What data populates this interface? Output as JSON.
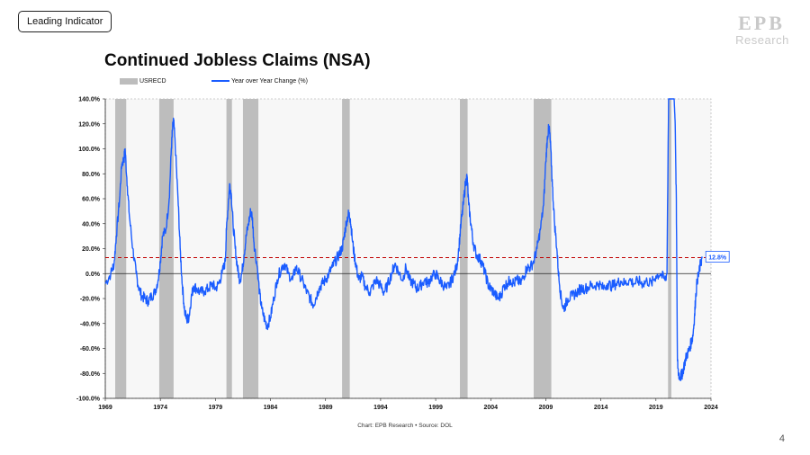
{
  "header": {
    "tag_label": "Leading Indicator",
    "logo_text": "Research",
    "logo_mark": "EPB"
  },
  "page_title": "Continued Jobless Claims (NSA)",
  "legend": {
    "recession_label": "USRECD",
    "line_label": "Year over Year Change (%)"
  },
  "footer": {
    "source": "Chart: EPB Research • Source: DOL",
    "page_number": "4"
  },
  "colors": {
    "line": "#1a5cff",
    "recession": "#bdbdbd",
    "plot_bg": "#f7f7f7",
    "threshold": "#c00000"
  },
  "chart_data": {
    "type": "line",
    "title": "Continued Jobless Claims (NSA)",
    "xlim": [
      1969,
      2024
    ],
    "ylim": [
      -100,
      140
    ],
    "x_ticks": [
      1969,
      1974,
      1979,
      1984,
      1989,
      1994,
      1999,
      2004,
      2009,
      2014,
      2019,
      2024
    ],
    "y_ticks": [
      {
        "v": 140,
        "label": "140.0%"
      },
      {
        "v": 120,
        "label": "120.0%"
      },
      {
        "v": 100,
        "label": "100.0%"
      },
      {
        "v": 80,
        "label": "80.0%"
      },
      {
        "v": 60,
        "label": "60.0%"
      },
      {
        "v": 40,
        "label": "40.0%"
      },
      {
        "v": 20,
        "label": "20.0%"
      },
      {
        "v": 0,
        "label": "0.0%"
      },
      {
        "v": -20,
        "label": "-20.0%"
      },
      {
        "v": -40,
        "label": "-40.0%"
      },
      {
        "v": -60,
        "label": "-60.0%"
      },
      {
        "v": -80,
        "label": "-80.0%"
      },
      {
        "v": -100,
        "label": "-100.0%"
      }
    ],
    "reference_line": {
      "value": 12.8,
      "label": "12.8%"
    },
    "recessions": [
      [
        1969.9,
        1970.9
      ],
      [
        1973.9,
        1975.2
      ],
      [
        1980.0,
        1980.5
      ],
      [
        1981.5,
        1982.9
      ],
      [
        1990.5,
        1991.2
      ],
      [
        2001.2,
        2001.9
      ],
      [
        2007.9,
        2009.5
      ],
      [
        2020.1,
        2020.4
      ]
    ],
    "series": [
      {
        "name": "Year over Year Change (%)",
        "points": [
          [
            1969.0,
            -8
          ],
          [
            1969.5,
            0
          ],
          [
            1969.8,
            8
          ],
          [
            1970.0,
            30
          ],
          [
            1970.3,
            60
          ],
          [
            1970.5,
            88
          ],
          [
            1970.7,
            92
          ],
          [
            1970.8,
            100
          ],
          [
            1971.0,
            70
          ],
          [
            1971.2,
            45
          ],
          [
            1971.5,
            20
          ],
          [
            1971.8,
            0
          ],
          [
            1972.0,
            -10
          ],
          [
            1972.3,
            -18
          ],
          [
            1972.6,
            -20
          ],
          [
            1972.9,
            -22
          ],
          [
            1973.2,
            -18
          ],
          [
            1973.5,
            -15
          ],
          [
            1973.8,
            -5
          ],
          [
            1974.0,
            10
          ],
          [
            1974.2,
            30
          ],
          [
            1974.5,
            35
          ],
          [
            1974.8,
            60
          ],
          [
            1975.0,
            100
          ],
          [
            1975.1,
            115
          ],
          [
            1975.2,
            123
          ],
          [
            1975.4,
            95
          ],
          [
            1975.6,
            60
          ],
          [
            1975.8,
            20
          ],
          [
            1976.0,
            -10
          ],
          [
            1976.2,
            -30
          ],
          [
            1976.4,
            -37
          ],
          [
            1976.6,
            -35
          ],
          [
            1976.8,
            -20
          ],
          [
            1977.0,
            -10
          ],
          [
            1977.3,
            -12
          ],
          [
            1977.6,
            -15
          ],
          [
            1978.0,
            -14
          ],
          [
            1978.4,
            -12
          ],
          [
            1978.7,
            -8
          ],
          [
            1979.0,
            -12
          ],
          [
            1979.3,
            -8
          ],
          [
            1979.6,
            0
          ],
          [
            1979.9,
            10
          ],
          [
            1980.0,
            35
          ],
          [
            1980.2,
            60
          ],
          [
            1980.3,
            72
          ],
          [
            1980.45,
            62
          ],
          [
            1980.6,
            40
          ],
          [
            1980.8,
            20
          ],
          [
            1981.0,
            5
          ],
          [
            1981.2,
            -5
          ],
          [
            1981.4,
            0
          ],
          [
            1981.6,
            15
          ],
          [
            1981.8,
            30
          ],
          [
            1982.0,
            40
          ],
          [
            1982.2,
            50
          ],
          [
            1982.35,
            45
          ],
          [
            1982.5,
            25
          ],
          [
            1982.8,
            5
          ],
          [
            1983.0,
            -15
          ],
          [
            1983.2,
            -28
          ],
          [
            1983.5,
            -38
          ],
          [
            1983.7,
            -42
          ],
          [
            1984.0,
            -35
          ],
          [
            1984.3,
            -20
          ],
          [
            1984.6,
            -5
          ],
          [
            1985.0,
            5
          ],
          [
            1985.3,
            8
          ],
          [
            1985.6,
            0
          ],
          [
            1986.0,
            -5
          ],
          [
            1986.3,
            5
          ],
          [
            1986.6,
            0
          ],
          [
            1987.0,
            -8
          ],
          [
            1987.3,
            -15
          ],
          [
            1987.6,
            -20
          ],
          [
            1987.9,
            -25
          ],
          [
            1988.1,
            -20
          ],
          [
            1988.4,
            -12
          ],
          [
            1988.7,
            -8
          ],
          [
            1989.0,
            -5
          ],
          [
            1989.3,
            0
          ],
          [
            1989.6,
            5
          ],
          [
            1989.9,
            10
          ],
          [
            1990.2,
            15
          ],
          [
            1990.5,
            20
          ],
          [
            1990.7,
            30
          ],
          [
            1990.9,
            42
          ],
          [
            1991.1,
            48
          ],
          [
            1991.25,
            44
          ],
          [
            1991.4,
            30
          ],
          [
            1991.6,
            15
          ],
          [
            1991.8,
            5
          ],
          [
            1992.0,
            -5
          ],
          [
            1992.3,
            -2
          ],
          [
            1992.6,
            -10
          ],
          [
            1993.0,
            -15
          ],
          [
            1993.3,
            -10
          ],
          [
            1993.6,
            -5
          ],
          [
            1994.0,
            -10
          ],
          [
            1994.3,
            -15
          ],
          [
            1994.6,
            -10
          ],
          [
            1995.0,
            0
          ],
          [
            1995.3,
            8
          ],
          [
            1995.6,
            2
          ],
          [
            1996.0,
            -5
          ],
          [
            1996.3,
            5
          ],
          [
            1996.6,
            -5
          ],
          [
            1997.0,
            -8
          ],
          [
            1997.3,
            -12
          ],
          [
            1997.6,
            -10
          ],
          [
            1998.0,
            -5
          ],
          [
            1998.3,
            -8
          ],
          [
            1998.6,
            -3
          ],
          [
            1999.0,
            0
          ],
          [
            1999.3,
            -5
          ],
          [
            1999.6,
            -8
          ],
          [
            2000.0,
            -12
          ],
          [
            2000.3,
            -8
          ],
          [
            2000.6,
            -2
          ],
          [
            2000.9,
            5
          ],
          [
            2001.1,
            20
          ],
          [
            2001.3,
            40
          ],
          [
            2001.5,
            55
          ],
          [
            2001.7,
            72
          ],
          [
            2001.85,
            78
          ],
          [
            2002.0,
            55
          ],
          [
            2002.2,
            40
          ],
          [
            2002.4,
            25
          ],
          [
            2002.7,
            15
          ],
          [
            2003.0,
            12
          ],
          [
            2003.2,
            8
          ],
          [
            2003.5,
            0
          ],
          [
            2003.8,
            -10
          ],
          [
            2004.0,
            -12
          ],
          [
            2004.3,
            -15
          ],
          [
            2004.6,
            -20
          ],
          [
            2004.9,
            -18
          ],
          [
            2005.2,
            -10
          ],
          [
            2005.5,
            -8
          ],
          [
            2005.8,
            -5
          ],
          [
            2006.1,
            -8
          ],
          [
            2006.4,
            -5
          ],
          [
            2006.7,
            -8
          ],
          [
            2007.0,
            -2
          ],
          [
            2007.3,
            5
          ],
          [
            2007.6,
            5
          ],
          [
            2007.9,
            10
          ],
          [
            2008.2,
            20
          ],
          [
            2008.5,
            35
          ],
          [
            2008.8,
            55
          ],
          [
            2009.0,
            90
          ],
          [
            2009.15,
            110
          ],
          [
            2009.3,
            118
          ],
          [
            2009.45,
            100
          ],
          [
            2009.6,
            70
          ],
          [
            2009.8,
            40
          ],
          [
            2010.0,
            20
          ],
          [
            2010.2,
            -5
          ],
          [
            2010.4,
            -20
          ],
          [
            2010.6,
            -28
          ],
          [
            2010.8,
            -25
          ],
          [
            2011.0,
            -20
          ],
          [
            2011.4,
            -18
          ],
          [
            2011.8,
            -15
          ],
          [
            2012.2,
            -12
          ],
          [
            2012.6,
            -12
          ],
          [
            2013.0,
            -10
          ],
          [
            2013.4,
            -10
          ],
          [
            2013.8,
            -8
          ],
          [
            2014.2,
            -12
          ],
          [
            2014.6,
            -8
          ],
          [
            2015.0,
            -10
          ],
          [
            2015.4,
            -8
          ],
          [
            2015.8,
            -6
          ],
          [
            2016.2,
            -8
          ],
          [
            2016.6,
            -5
          ],
          [
            2017.0,
            -8
          ],
          [
            2017.4,
            -6
          ],
          [
            2017.8,
            -8
          ],
          [
            2018.2,
            -6
          ],
          [
            2018.6,
            -8
          ],
          [
            2019.0,
            -2
          ],
          [
            2019.4,
            0
          ],
          [
            2019.8,
            -5
          ],
          [
            2020.0,
            0
          ],
          [
            2020.15,
            140
          ],
          [
            2020.3,
            140
          ],
          [
            2020.35,
            140
          ],
          [
            2020.45,
            140
          ],
          [
            2020.55,
            140
          ],
          [
            2020.65,
            140
          ],
          [
            2020.75,
            120
          ],
          [
            2020.85,
            60
          ],
          [
            2020.95,
            -70
          ],
          [
            2021.05,
            -80
          ],
          [
            2021.2,
            -83
          ],
          [
            2021.4,
            -80
          ],
          [
            2021.6,
            -72
          ],
          [
            2021.8,
            -65
          ],
          [
            2022.0,
            -62
          ],
          [
            2022.2,
            -55
          ],
          [
            2022.35,
            -50
          ],
          [
            2022.5,
            -35
          ],
          [
            2022.6,
            -20
          ],
          [
            2022.75,
            -5
          ],
          [
            2022.9,
            0
          ],
          [
            2023.05,
            8
          ],
          [
            2023.2,
            12.8
          ]
        ]
      }
    ]
  }
}
